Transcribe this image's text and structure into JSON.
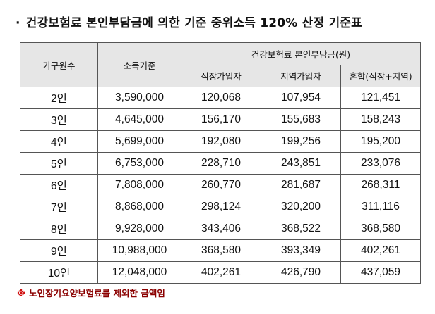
{
  "title": {
    "bullet": "·",
    "text": "건강보험료 본인부담금에 의한 기준 중위소득 120% 산정 기준표"
  },
  "table": {
    "headers": {
      "household": "가구원수",
      "income": "소득기준",
      "contribution_group": "건강보험료 본인부담금(원)",
      "workplace": "직장가입자",
      "regional": "지역가입자",
      "mixed": "혼합(직장+지역)"
    },
    "rows": [
      {
        "household": "2인",
        "income": "3,590,000",
        "workplace": "120,068",
        "regional": "107,954",
        "mixed": "121,451"
      },
      {
        "household": "3인",
        "income": "4,645,000",
        "workplace": "156,170",
        "regional": "155,683",
        "mixed": "158,243"
      },
      {
        "household": "4인",
        "income": "5,699,000",
        "workplace": "192,080",
        "regional": "199,256",
        "mixed": "195,200"
      },
      {
        "household": "5인",
        "income": "6,753,000",
        "workplace": "228,710",
        "regional": "243,851",
        "mixed": "233,076"
      },
      {
        "household": "6인",
        "income": "7,808,000",
        "workplace": "260,770",
        "regional": "281,687",
        "mixed": "268,311"
      },
      {
        "household": "7인",
        "income": "8,868,000",
        "workplace": "298,124",
        "regional": "320,200",
        "mixed": "311,116"
      },
      {
        "household": "8인",
        "income": "9,928,000",
        "workplace": "343,406",
        "regional": "368,522",
        "mixed": "368,580"
      },
      {
        "household": "9인",
        "income": "10,988,000",
        "workplace": "368,580",
        "regional": "393,349",
        "mixed": "402,261"
      },
      {
        "household": "10인",
        "income": "12,048,000",
        "workplace": "402,261",
        "regional": "426,790",
        "mixed": "437,059"
      }
    ]
  },
  "footnote": {
    "mark": "※",
    "text": "노인장기요양보험료를 제외한 금액임"
  },
  "colors": {
    "header_bg": "#e6e6e6",
    "border": "#555555",
    "footnote_mark": "#d01010",
    "footnote_text": "#8b0000"
  }
}
